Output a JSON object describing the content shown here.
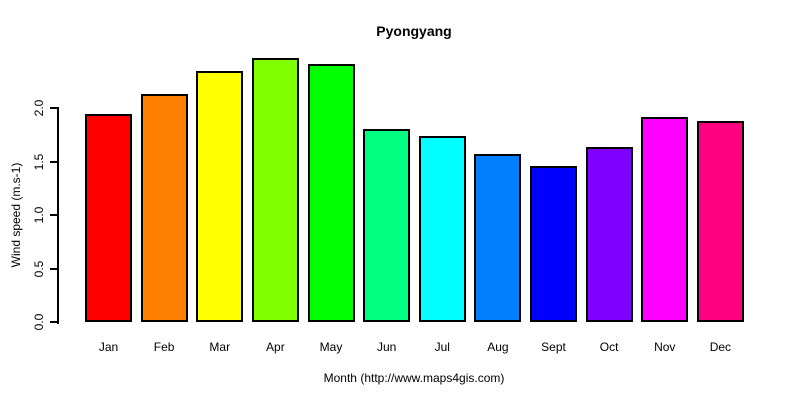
{
  "chart_data": {
    "type": "bar",
    "title": "Pyongyang",
    "xlabel": "Month (http://www.maps4gis.com)",
    "ylabel": "Wind speed (m.s-1)",
    "categories": [
      "Jan",
      "Feb",
      "Mar",
      "Apr",
      "May",
      "Jun",
      "Jul",
      "Aug",
      "Sept",
      "Oct",
      "Nov",
      "Dec"
    ],
    "values": [
      1.95,
      2.13,
      2.35,
      2.47,
      2.41,
      1.81,
      1.74,
      1.57,
      1.46,
      1.64,
      1.92,
      1.88
    ],
    "bar_colors": [
      "#FF0000",
      "#FF8000",
      "#FFFF00",
      "#80FF00",
      "#00FF00",
      "#00FF80",
      "#00FFFF",
      "#0080FF",
      "#0000FF",
      "#8000FF",
      "#FF00FF",
      "#FF0080"
    ],
    "bar_border_color": "#000000",
    "ylim": [
      0.0,
      2.0
    ],
    "yticks": [
      0.0,
      0.5,
      1.0,
      1.5,
      2.0
    ],
    "ytick_labels": [
      "0.0",
      "0.5",
      "1.0",
      "1.5",
      "2.0"
    ],
    "grid": false,
    "legend": "none",
    "background_color": "#FFFFFF",
    "text_color": "#000000"
  }
}
